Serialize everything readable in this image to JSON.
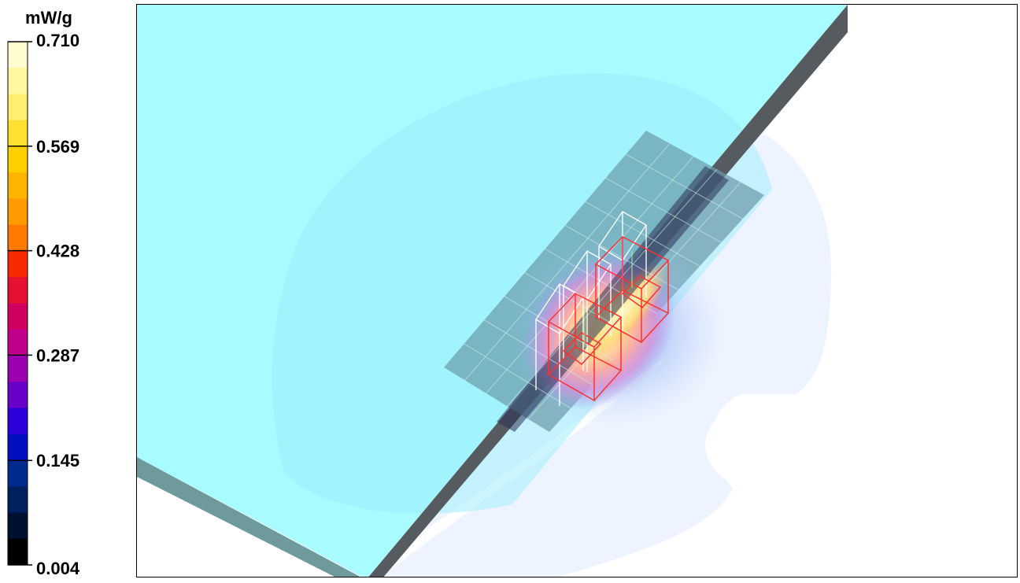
{
  "chart_data": {
    "type": "heatmap",
    "title": "",
    "unit": "mW/g",
    "range": [
      0.004,
      0.71
    ],
    "colorbar_ticks": [
      "0.710",
      "0.569",
      "0.428",
      "0.287",
      "0.145",
      "0.004"
    ],
    "colorbar_tick_values": [
      0.71,
      0.569,
      0.428,
      0.287,
      0.145,
      0.004
    ],
    "colorbar_colors": [
      "#fffcd0",
      "#fff8a0",
      "#ffee70",
      "#ffe030",
      "#ffd000",
      "#ffb400",
      "#ff9a00",
      "#ff7a00",
      "#f82a00",
      "#e81030",
      "#d00060",
      "#c0008c",
      "#9c00b0",
      "#6800c8",
      "#2c00d8",
      "#0010c0",
      "#002a90",
      "#002060",
      "#001030",
      "#000000"
    ],
    "colors": {
      "phantom_top": "#a8fbfe",
      "phantom_side": "#6e9a9c",
      "phantom_edge": "#555555",
      "field_background": "#eef4ff",
      "scan_grid": "#7aa7ac",
      "antenna_outline": "#ff3030"
    }
  }
}
